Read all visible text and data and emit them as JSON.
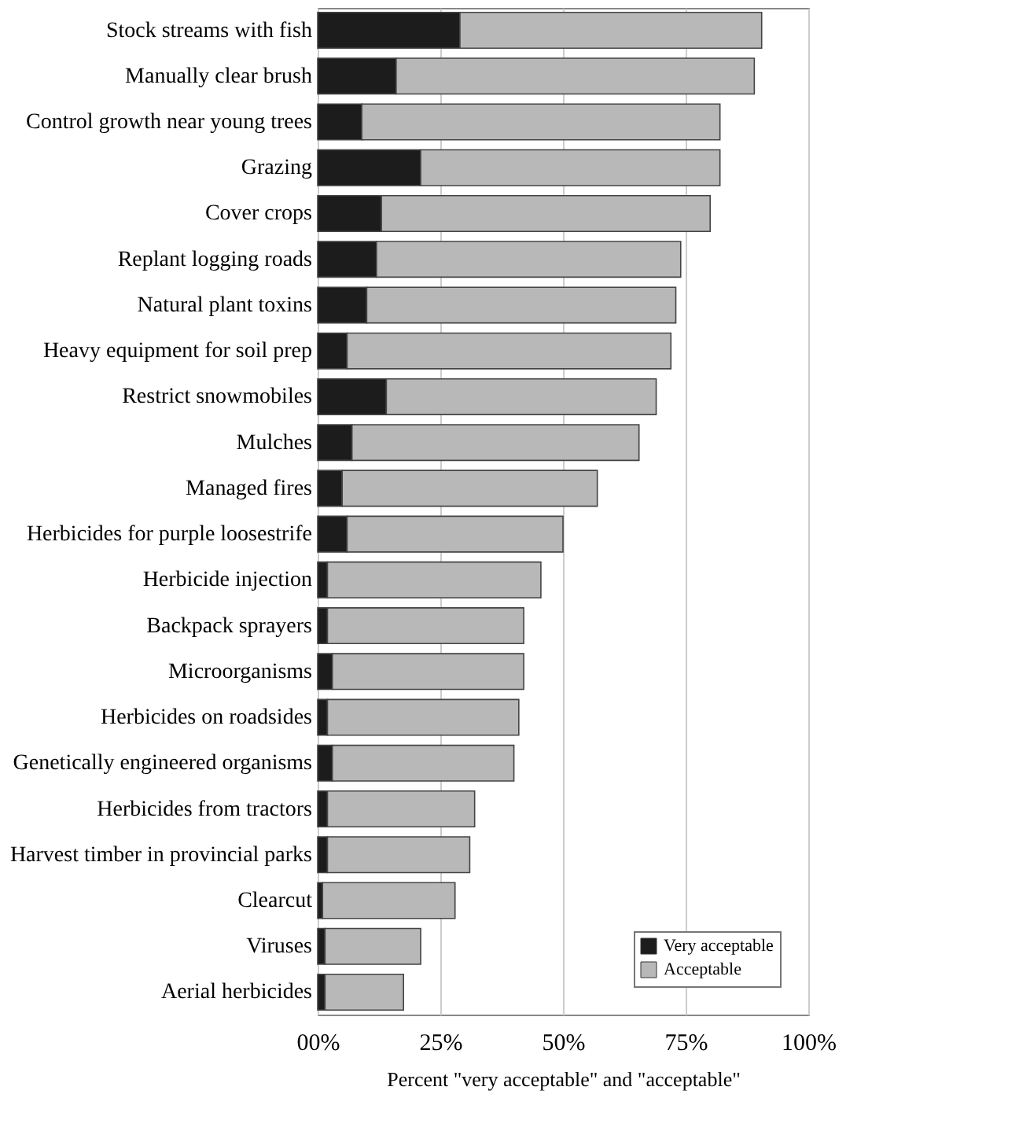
{
  "chart_data": {
    "type": "bar",
    "orientation": "horizontal",
    "stacked": true,
    "xlabel": "Percent \"very acceptable\" and \"acceptable\"",
    "categories": [
      "Stock streams with fish",
      "Manually clear brush",
      "Control growth near young trees",
      "Grazing",
      "Cover crops",
      "Replant logging roads",
      "Natural plant toxins",
      "Heavy equipment for soil prep",
      "Restrict snowmobiles",
      "Mulches",
      "Managed fires",
      "Herbicides for purple loosestrife",
      "Herbicide injection",
      "Backpack sprayers",
      "Microorganisms",
      "Herbicides on roadsides",
      "Genetically engineered organisms",
      "Herbicides from tractors",
      "Harvest timber in provincial parks",
      "Clearcut",
      "Viruses",
      "Aerial herbicides"
    ],
    "series": [
      {
        "name": "Very acceptable",
        "color": "#1c1c1c",
        "values": [
          29,
          16,
          9,
          21,
          13,
          12,
          10,
          6,
          14,
          7,
          5,
          6,
          2,
          2,
          3,
          2,
          3,
          2,
          2,
          1,
          1.5,
          1.5
        ]
      },
      {
        "name": "Acceptable",
        "color": "#b8b8b8",
        "values": [
          61.5,
          73,
          73,
          61,
          67,
          62,
          63,
          66,
          55,
          58.5,
          52,
          44,
          43.5,
          40,
          39,
          39,
          37,
          30,
          29,
          27,
          19.5,
          16
        ]
      }
    ],
    "xlim": [
      0,
      100
    ],
    "xticks": [
      {
        "value": 0,
        "label": "00%"
      },
      {
        "value": 25,
        "label": "25%"
      },
      {
        "value": 50,
        "label": "50%"
      },
      {
        "value": 75,
        "label": "75%"
      },
      {
        "value": 100,
        "label": "100%"
      }
    ],
    "grid": "x",
    "legend": "bottom right"
  }
}
